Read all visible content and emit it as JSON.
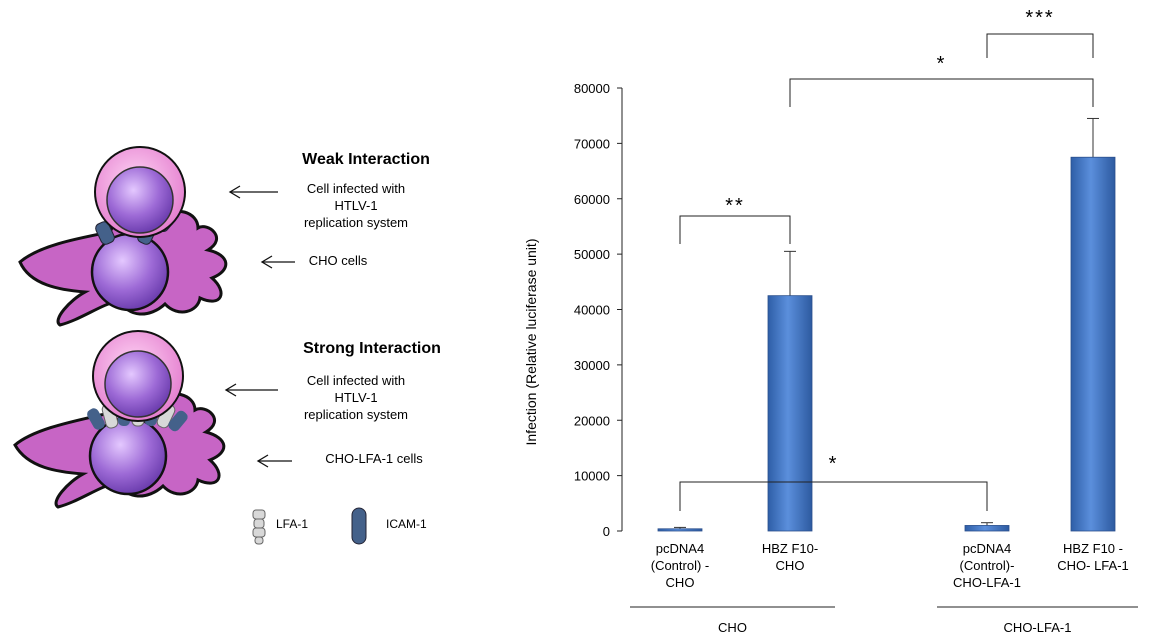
{
  "diagram": {
    "weak": {
      "title": "Weak Interaction",
      "label_top": [
        "Cell infected with",
        "HTLV-1",
        "replication system"
      ],
      "label_bottom": "CHO cells"
    },
    "strong": {
      "title": "Strong Interaction",
      "label_top": [
        "Cell infected with",
        "HTLV-1",
        "replication system"
      ],
      "label_bottom": "CHO-LFA-1 cells"
    },
    "legend": {
      "lfa1": "LFA-1",
      "icam1": "ICAM-1"
    },
    "colors": {
      "cell_membrane": "#c765c5",
      "nucleus": "#8f5fd0",
      "infected_outer": "#f0a7e0",
      "receptor": "#44618a"
    }
  },
  "chart_data": {
    "type": "bar",
    "ylabel": "Infection (Relative luciferase unit)",
    "ylim": [
      0,
      80000
    ],
    "yticks": [
      0,
      10000,
      20000,
      30000,
      40000,
      50000,
      60000,
      70000,
      80000
    ],
    "bar_color": "#3f73c2",
    "categories": [
      {
        "lines": [
          "pcDNA4",
          "(Control) -",
          "CHO"
        ],
        "value": 400,
        "error": 250,
        "slot": 0
      },
      {
        "lines": [
          "HBZ F10-",
          "CHO"
        ],
        "value": 42500,
        "error": 8000,
        "slot": 1
      },
      {
        "lines": [
          "pcDNA4",
          "(Control)-",
          "CHO-LFA-1"
        ],
        "value": 1000,
        "error": 500,
        "slot": 3
      },
      {
        "lines": [
          "HBZ F10 -",
          "CHO- LFA-1"
        ],
        "value": 67500,
        "error": 7000,
        "slot": 4
      }
    ],
    "groups": [
      {
        "label": "CHO",
        "slots": [
          0,
          1
        ]
      },
      {
        "label": "CHO-LFA-1",
        "slots": [
          3,
          4
        ]
      }
    ],
    "significance": [
      {
        "from": 0,
        "to": 1,
        "label": "**"
      },
      {
        "from": 1,
        "to": 4,
        "label": "*"
      },
      {
        "from": 3,
        "to": 4,
        "label": "***"
      },
      {
        "from": 0,
        "to": 3,
        "label": "*"
      }
    ]
  }
}
